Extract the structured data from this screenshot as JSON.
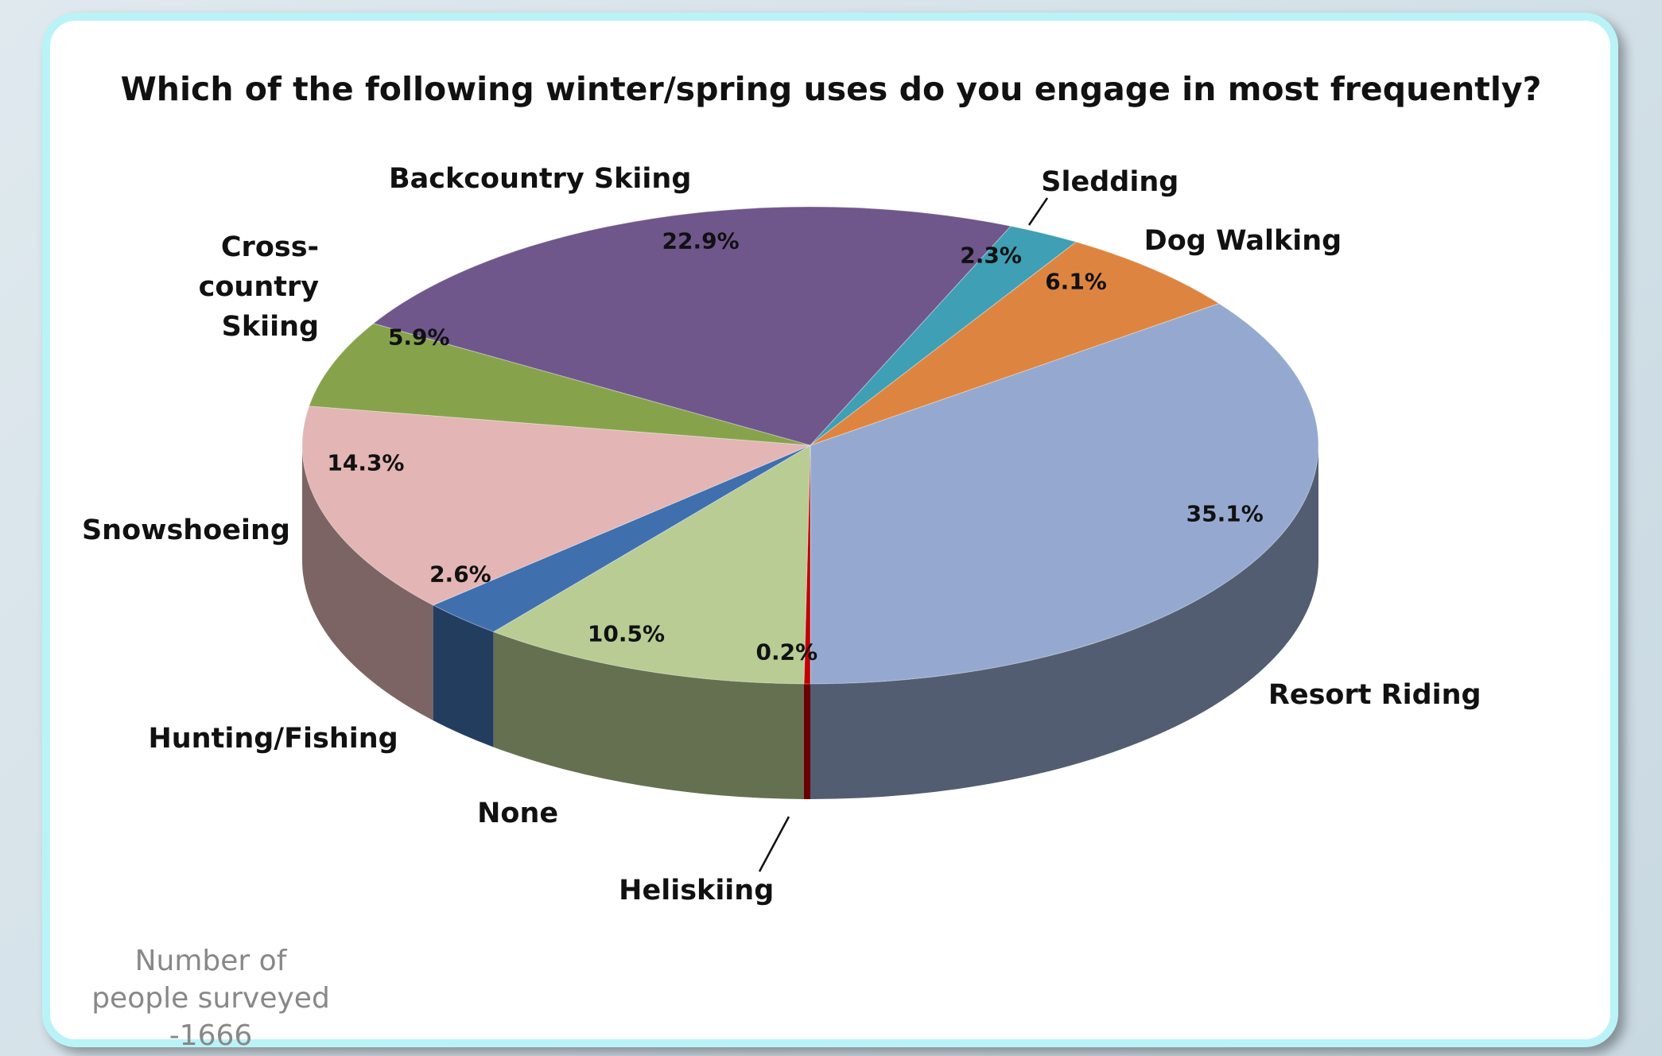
{
  "chart_data": {
    "type": "pie",
    "title": "Which of the following winter/spring uses do you engage in most frequently?",
    "categories": [
      "Resort Riding",
      "Heliskiing",
      "None",
      "Hunting/Fishing",
      "Snowshoeing",
      "Cross-country Skiing",
      "Backcountry Skiing",
      "Sledding",
      "Dog Walking"
    ],
    "values": [
      35.1,
      0.2,
      10.5,
      2.6,
      14.3,
      5.9,
      22.9,
      2.3,
      6.1
    ],
    "value_labels": [
      "35.1%",
      "0.2%",
      "10.5%",
      "2.6%",
      "14.3%",
      "5.9%",
      "22.9%",
      "2.3%",
      "6.1%"
    ],
    "colors": [
      "#95a9d0",
      "#c00000",
      "#b8cc94",
      "#3f6fad",
      "#e3b5b5",
      "#86a34c",
      "#6f578c",
      "#3f9fb4",
      "#dd8540"
    ],
    "note": "Number of people surveyed -1666"
  }
}
